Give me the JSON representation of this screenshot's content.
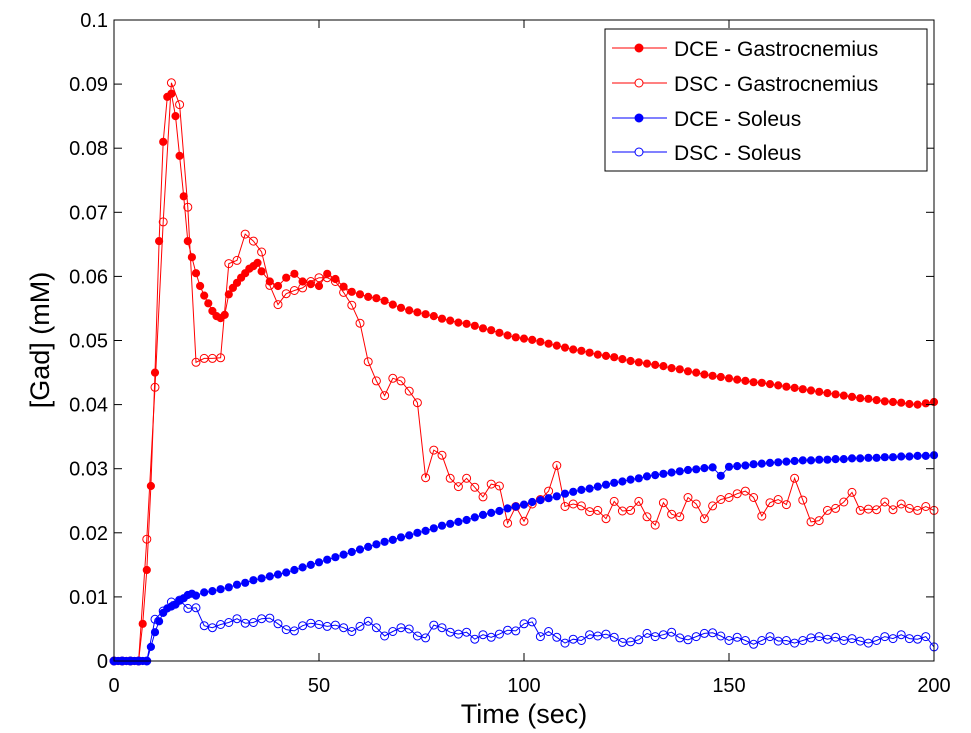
{
  "chart_data": {
    "type": "line",
    "title": "",
    "xlabel": "Time (sec)",
    "ylabel": "[Gad] (mM)",
    "xlim": [
      0,
      200
    ],
    "ylim": [
      0,
      0.1
    ],
    "xticks": [
      0,
      50,
      100,
      150,
      200
    ],
    "xtick_labels": [
      "0",
      "50",
      "100",
      "150",
      "200"
    ],
    "yticks": [
      0,
      0.01,
      0.02,
      0.03,
      0.04,
      0.05,
      0.06,
      0.07,
      0.08,
      0.09,
      0.1
    ],
    "ytick_labels": [
      "0",
      "0.01",
      "0.02",
      "0.03",
      "0.04",
      "0.05",
      "0.06",
      "0.07",
      "0.08",
      "0.09",
      "0.1"
    ],
    "grid": false,
    "legend_position": "top-right",
    "series": [
      {
        "name": "DCE - Gastrocnemius",
        "color": "#ff0000",
        "marker": "filled-circle",
        "x": [
          0,
          1,
          2,
          3,
          4,
          5,
          6,
          7,
          8,
          9,
          10,
          11,
          12,
          13,
          14,
          15,
          16,
          17,
          18,
          19,
          20,
          21,
          22,
          23,
          24,
          25,
          26,
          27,
          28,
          29,
          30,
          31,
          32,
          33,
          34,
          35,
          36,
          38,
          40,
          42,
          44,
          46,
          48,
          50,
          52,
          54,
          56,
          58,
          60,
          62,
          64,
          66,
          68,
          70,
          72,
          74,
          76,
          78,
          80,
          82,
          84,
          86,
          88,
          90,
          92,
          94,
          96,
          98,
          100,
          102,
          104,
          106,
          108,
          110,
          112,
          114,
          116,
          118,
          120,
          122,
          124,
          126,
          128,
          130,
          132,
          134,
          136,
          138,
          140,
          142,
          144,
          146,
          148,
          150,
          152,
          154,
          156,
          158,
          160,
          162,
          164,
          166,
          168,
          170,
          172,
          174,
          176,
          178,
          180,
          182,
          184,
          186,
          188,
          190,
          192,
          194,
          196,
          198,
          200
        ],
        "values": [
          0,
          0,
          0,
          0,
          0,
          0,
          0,
          0.0058,
          0.0142,
          0.0273,
          0.045,
          0.0655,
          0.081,
          0.088,
          0.0885,
          0.085,
          0.0788,
          0.0725,
          0.0655,
          0.063,
          0.0605,
          0.0585,
          0.057,
          0.0558,
          0.0546,
          0.0538,
          0.0535,
          0.054,
          0.0572,
          0.0582,
          0.059,
          0.0598,
          0.0605,
          0.0612,
          0.0616,
          0.0621,
          0.0608,
          0.0592,
          0.0585,
          0.0598,
          0.0604,
          0.0592,
          0.0588,
          0.0585,
          0.0604,
          0.0596,
          0.0584,
          0.0576,
          0.0572,
          0.0568,
          0.0566,
          0.0562,
          0.0556,
          0.0551,
          0.0547,
          0.0544,
          0.0541,
          0.0538,
          0.0534,
          0.0531,
          0.0528,
          0.0526,
          0.0523,
          0.0519,
          0.0516,
          0.0512,
          0.0508,
          0.0505,
          0.0503,
          0.0501,
          0.0498,
          0.0495,
          0.0492,
          0.0489,
          0.0486,
          0.0484,
          0.0481,
          0.0478,
          0.0476,
          0.0474,
          0.0471,
          0.0468,
          0.0466,
          0.0464,
          0.0462,
          0.046,
          0.0457,
          0.0455,
          0.0452,
          0.045,
          0.0447,
          0.0445,
          0.0443,
          0.0441,
          0.0439,
          0.0437,
          0.0435,
          0.0434,
          0.0432,
          0.043,
          0.0428,
          0.0426,
          0.0424,
          0.0422,
          0.042,
          0.0418,
          0.0416,
          0.0414,
          0.0412,
          0.041,
          0.0409,
          0.0407,
          0.0405,
          0.0404,
          0.0403,
          0.0401,
          0.04,
          0.0402,
          0.0404
        ]
      },
      {
        "name": "DSC - Gastrocnemius",
        "color": "#ff0000",
        "marker": "open-circle",
        "x": [
          0,
          2,
          4,
          6,
          8,
          10,
          12,
          14,
          16,
          18,
          20,
          22,
          24,
          26,
          28,
          30,
          32,
          34,
          36,
          38,
          40,
          42,
          44,
          46,
          48,
          50,
          52,
          54,
          56,
          58,
          60,
          62,
          64,
          66,
          68,
          70,
          72,
          74,
          76,
          78,
          80,
          82,
          84,
          86,
          88,
          90,
          92,
          94,
          96,
          98,
          100,
          102,
          104,
          106,
          108,
          110,
          112,
          114,
          116,
          118,
          120,
          122,
          124,
          126,
          128,
          130,
          132,
          134,
          136,
          138,
          140,
          142,
          144,
          146,
          148,
          150,
          152,
          154,
          156,
          158,
          160,
          162,
          164,
          166,
          168,
          170,
          172,
          174,
          176,
          178,
          180,
          182,
          184,
          186,
          188,
          190,
          192,
          194,
          196,
          198,
          200
        ],
        "values": [
          0,
          0,
          0,
          0,
          0.019,
          0.0427,
          0.0685,
          0.0902,
          0.0868,
          0.0708,
          0.0466,
          0.0472,
          0.0472,
          0.0473,
          0.062,
          0.0625,
          0.0666,
          0.0655,
          0.0638,
          0.0586,
          0.0556,
          0.0573,
          0.0578,
          0.0582,
          0.0592,
          0.0598,
          0.0598,
          0.0592,
          0.0575,
          0.0555,
          0.0527,
          0.0467,
          0.0437,
          0.0414,
          0.0441,
          0.0437,
          0.0421,
          0.0403,
          0.0286,
          0.0329,
          0.0321,
          0.0285,
          0.0272,
          0.0285,
          0.0271,
          0.0256,
          0.0276,
          0.0273,
          0.0215,
          0.0241,
          0.0218,
          0.0245,
          0.0252,
          0.0265,
          0.0305,
          0.0241,
          0.0245,
          0.0242,
          0.0233,
          0.0235,
          0.0222,
          0.0249,
          0.0234,
          0.0235,
          0.0249,
          0.0225,
          0.0212,
          0.0247,
          0.0229,
          0.0225,
          0.0255,
          0.0245,
          0.0222,
          0.0242,
          0.0252,
          0.0255,
          0.0261,
          0.0265,
          0.0255,
          0.0226,
          0.0247,
          0.0252,
          0.0244,
          0.0285,
          0.0251,
          0.0217,
          0.0219,
          0.0235,
          0.0238,
          0.0248,
          0.0263,
          0.0235,
          0.0237,
          0.0236,
          0.0248,
          0.0236,
          0.0245,
          0.0238,
          0.0235,
          0.0241,
          0.0235
        ]
      },
      {
        "name": "DCE - Soleus",
        "color": "#0000ff",
        "marker": "filled-circle",
        "x": [
          0,
          1,
          2,
          3,
          4,
          5,
          6,
          7,
          8,
          9,
          10,
          11,
          12,
          13,
          14,
          15,
          16,
          17,
          18,
          19,
          20,
          22,
          24,
          26,
          28,
          30,
          32,
          34,
          36,
          38,
          40,
          42,
          44,
          46,
          48,
          50,
          52,
          54,
          56,
          58,
          60,
          62,
          64,
          66,
          68,
          70,
          72,
          74,
          76,
          78,
          80,
          82,
          84,
          86,
          88,
          90,
          92,
          94,
          96,
          98,
          100,
          102,
          104,
          106,
          108,
          110,
          112,
          114,
          116,
          118,
          120,
          122,
          124,
          126,
          128,
          130,
          132,
          134,
          136,
          138,
          140,
          142,
          144,
          146,
          148,
          150,
          152,
          154,
          156,
          158,
          160,
          162,
          164,
          166,
          168,
          170,
          172,
          174,
          176,
          178,
          180,
          182,
          184,
          186,
          188,
          190,
          192,
          194,
          196,
          198,
          200
        ],
        "values": [
          0,
          0,
          0,
          0,
          0,
          0,
          0,
          0,
          0,
          0.0022,
          0.0045,
          0.0062,
          0.0075,
          0.0082,
          0.0085,
          0.0088,
          0.0094,
          0.0098,
          0.0103,
          0.0105,
          0.0102,
          0.0107,
          0.0109,
          0.0112,
          0.0115,
          0.0119,
          0.0122,
          0.0126,
          0.0129,
          0.0132,
          0.0135,
          0.0138,
          0.0142,
          0.0146,
          0.015,
          0.0154,
          0.0158,
          0.0162,
          0.0166,
          0.017,
          0.0174,
          0.0178,
          0.0182,
          0.0186,
          0.0189,
          0.0193,
          0.0196,
          0.02,
          0.0203,
          0.0207,
          0.0211,
          0.0214,
          0.0217,
          0.022,
          0.0224,
          0.0228,
          0.0231,
          0.0234,
          0.0238,
          0.0241,
          0.0244,
          0.0248,
          0.0251,
          0.0254,
          0.0257,
          0.0261,
          0.0264,
          0.0267,
          0.0269,
          0.0272,
          0.0275,
          0.0278,
          0.028,
          0.0283,
          0.0285,
          0.0288,
          0.029,
          0.0292,
          0.0294,
          0.0296,
          0.0298,
          0.0299,
          0.0301,
          0.0302,
          0.0289,
          0.0303,
          0.0304,
          0.0305,
          0.0307,
          0.0308,
          0.0309,
          0.031,
          0.0311,
          0.0312,
          0.0313,
          0.0313,
          0.0314,
          0.0314,
          0.0315,
          0.0315,
          0.0316,
          0.0316,
          0.0317,
          0.0317,
          0.0318,
          0.0318,
          0.0319,
          0.0319,
          0.032,
          0.032,
          0.0321
        ]
      },
      {
        "name": "DSC - Soleus",
        "color": "#0000ff",
        "marker": "open-circle",
        "x": [
          0,
          2,
          4,
          6,
          8,
          10,
          12,
          14,
          16,
          18,
          20,
          22,
          24,
          26,
          28,
          30,
          32,
          34,
          36,
          38,
          40,
          42,
          44,
          46,
          48,
          50,
          52,
          54,
          56,
          58,
          60,
          62,
          64,
          66,
          68,
          70,
          72,
          74,
          76,
          78,
          80,
          82,
          84,
          86,
          88,
          90,
          92,
          94,
          96,
          98,
          100,
          102,
          104,
          106,
          108,
          110,
          112,
          114,
          116,
          118,
          120,
          122,
          124,
          126,
          128,
          130,
          132,
          134,
          136,
          138,
          140,
          142,
          144,
          146,
          148,
          150,
          152,
          154,
          156,
          158,
          160,
          162,
          164,
          166,
          168,
          170,
          172,
          174,
          176,
          178,
          180,
          182,
          184,
          186,
          188,
          190,
          192,
          194,
          196,
          198,
          200
        ],
        "values": [
          0,
          0,
          0,
          0,
          0,
          0.0065,
          0.0078,
          0.0092,
          0.0095,
          0.0082,
          0.0083,
          0.0055,
          0.0052,
          0.0057,
          0.006,
          0.0066,
          0.0059,
          0.006,
          0.0066,
          0.0067,
          0.0058,
          0.0049,
          0.0047,
          0.0055,
          0.0059,
          0.0057,
          0.0054,
          0.0056,
          0.0052,
          0.0046,
          0.0054,
          0.0062,
          0.0052,
          0.0039,
          0.0046,
          0.0052,
          0.005,
          0.0039,
          0.0036,
          0.0056,
          0.0052,
          0.0045,
          0.0042,
          0.0045,
          0.0034,
          0.0041,
          0.0037,
          0.0042,
          0.0048,
          0.0047,
          0.0058,
          0.0061,
          0.0038,
          0.0046,
          0.0037,
          0.0028,
          0.0034,
          0.0032,
          0.0041,
          0.0039,
          0.0042,
          0.0037,
          0.0029,
          0.003,
          0.0033,
          0.0043,
          0.0038,
          0.0041,
          0.0045,
          0.0036,
          0.0033,
          0.0038,
          0.0043,
          0.0044,
          0.0039,
          0.0032,
          0.0037,
          0.0032,
          0.0026,
          0.0032,
          0.0038,
          0.0031,
          0.0032,
          0.0028,
          0.0032,
          0.0036,
          0.0038,
          0.0034,
          0.0037,
          0.0032,
          0.0035,
          0.0031,
          0.0028,
          0.0032,
          0.0038,
          0.0035,
          0.0041,
          0.0035,
          0.0034,
          0.0038,
          0.0022
        ]
      }
    ]
  }
}
